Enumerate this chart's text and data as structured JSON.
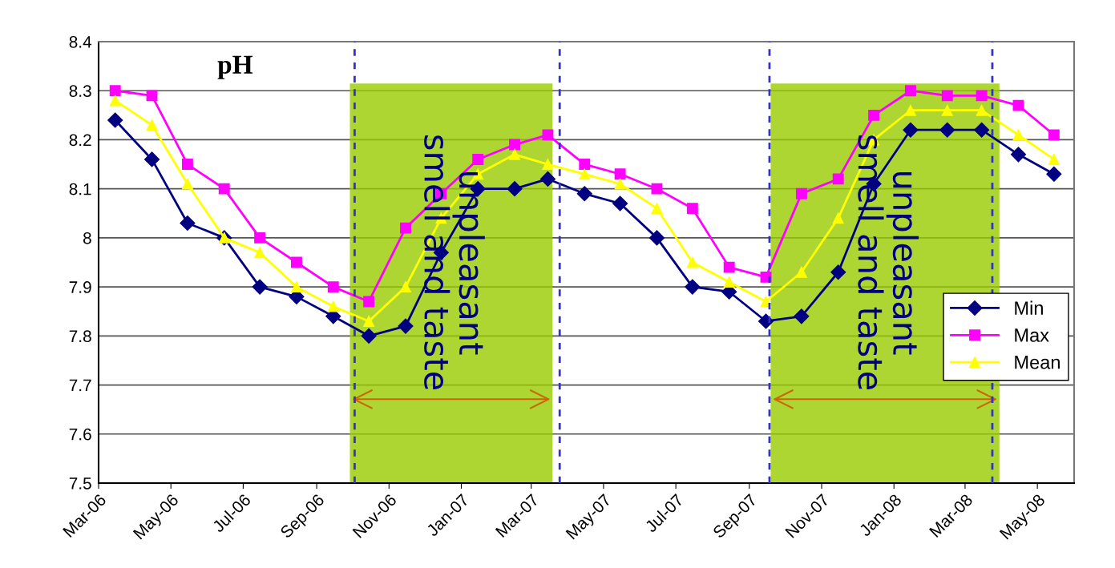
{
  "chart_data": {
    "type": "line",
    "title": "pH",
    "x": [
      "2006-03-15",
      "2006-04-15",
      "2006-05-15",
      "2006-06-15",
      "2006-07-15",
      "2006-08-15",
      "2006-09-15",
      "2006-10-15",
      "2006-11-15",
      "2006-12-15",
      "2007-01-15",
      "2007-02-15",
      "2007-03-15",
      "2007-04-15",
      "2007-05-15",
      "2007-06-15",
      "2007-07-15",
      "2007-08-15",
      "2007-09-15",
      "2007-10-15",
      "2007-11-15",
      "2007-12-15",
      "2008-01-15",
      "2008-02-15",
      "2008-03-15",
      "2008-04-15",
      "2008-05-15"
    ],
    "series": [
      {
        "name": "Min",
        "color": "#000080",
        "marker": "diamond",
        "values": [
          8.24,
          8.16,
          8.03,
          8.0,
          7.9,
          7.88,
          7.84,
          7.8,
          7.82,
          7.97,
          8.1,
          8.1,
          8.12,
          8.09,
          8.07,
          8.0,
          7.9,
          7.89,
          7.83,
          7.84,
          7.93,
          8.11,
          8.22,
          8.22,
          8.22,
          8.17,
          8.13
        ]
      },
      {
        "name": "Max",
        "color": "#ff00ff",
        "marker": "square",
        "values": [
          8.3,
          8.29,
          8.15,
          8.1,
          8.0,
          7.95,
          7.9,
          7.87,
          8.02,
          8.09,
          8.16,
          8.19,
          8.21,
          8.15,
          8.13,
          8.1,
          8.06,
          7.94,
          7.92,
          8.09,
          8.12,
          8.25,
          8.3,
          8.29,
          8.29,
          8.27,
          8.21
        ]
      },
      {
        "name": "Mean",
        "color": "#ffff00",
        "marker": "triangle",
        "values": [
          8.28,
          8.23,
          8.11,
          8.0,
          7.97,
          7.9,
          7.86,
          7.83,
          7.9,
          8.04,
          8.13,
          8.17,
          8.15,
          8.13,
          8.11,
          8.06,
          7.95,
          7.91,
          7.87,
          7.93,
          8.04,
          8.2,
          8.26,
          8.26,
          8.26,
          8.21,
          8.16
        ]
      }
    ],
    "xlim": [
      "2006-03-01",
      "2008-06-01"
    ],
    "xticks": [
      {
        "value": "2006-03-01",
        "label": "Mar-06"
      },
      {
        "value": "2006-05-01",
        "label": "May-06"
      },
      {
        "value": "2006-07-01",
        "label": "Jul-06"
      },
      {
        "value": "2006-09-01",
        "label": "Sep-06"
      },
      {
        "value": "2006-11-01",
        "label": "Nov-06"
      },
      {
        "value": "2007-01-01",
        "label": "Jan-07"
      },
      {
        "value": "2007-03-01",
        "label": "Mar-07"
      },
      {
        "value": "2007-05-01",
        "label": "May-07"
      },
      {
        "value": "2007-07-01",
        "label": "Jul-07"
      },
      {
        "value": "2007-09-01",
        "label": "Sep-07"
      },
      {
        "value": "2007-11-01",
        "label": "Nov-07"
      },
      {
        "value": "2008-01-01",
        "label": "Jan-08"
      },
      {
        "value": "2008-03-01",
        "label": "Mar-08"
      },
      {
        "value": "2008-05-01",
        "label": "May-08"
      }
    ],
    "ylim": [
      7.5,
      8.4
    ],
    "yticks": [
      7.5,
      7.6,
      7.7,
      7.8,
      7.9,
      8,
      8.1,
      8.2,
      8.3,
      8.4
    ],
    "bands": [
      {
        "axis": "x",
        "from": "2006-09-29",
        "to": "2007-03-19",
        "label": "unpleasant\nsmell and taste",
        "color": "#99cc00"
      },
      {
        "axis": "x",
        "from": "2007-09-19",
        "to": "2008-03-30",
        "label": "unpleasant\nsmell and taste",
        "color": "#99cc00"
      }
    ],
    "ref_lines": [
      {
        "axis": "x",
        "value": "2006-10-03",
        "color": "#3333cc",
        "line_style": "dashed"
      },
      {
        "axis": "x",
        "value": "2007-03-25",
        "color": "#3333cc",
        "line_style": "dashed"
      },
      {
        "axis": "x",
        "value": "2007-09-18",
        "color": "#3333cc",
        "line_style": "dashed"
      },
      {
        "axis": "x",
        "value": "2008-03-24",
        "color": "#3333cc",
        "line_style": "dashed"
      }
    ],
    "grid": "y",
    "legend": "lower right",
    "line_style": "solid"
  }
}
